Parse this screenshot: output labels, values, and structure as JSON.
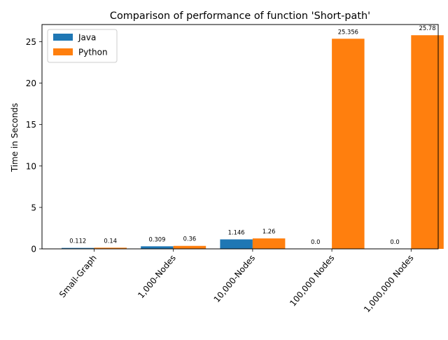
{
  "chart_data": {
    "type": "bar",
    "title": "Comparison of performance of function 'Short-path'",
    "xlabel": "",
    "ylabel": "Time in Seconds",
    "categories": [
      "Small-Graph",
      "1,000-Nodes",
      "10,000-Nodes",
      "100,000 Nodes",
      "1,000,000 Nodes"
    ],
    "series": [
      {
        "name": "Java",
        "color": "#1f77b4",
        "values": [
          0.112,
          0.309,
          1.146,
          0.0,
          0.0
        ],
        "labels": [
          "0.112",
          "0.309",
          "1.146",
          "0.0",
          "0.0"
        ]
      },
      {
        "name": "Python",
        "color": "#ff7f0e",
        "values": [
          0.14,
          0.36,
          1.26,
          25.356,
          25.78
        ],
        "labels": [
          "0.14",
          "0.36",
          "1.26",
          "25.356",
          "25.78"
        ]
      }
    ],
    "yticks": [
      0,
      5,
      10,
      15,
      20,
      25
    ],
    "ylim": [
      0,
      27.069
    ],
    "grid": false,
    "legend_position": "top-left"
  }
}
